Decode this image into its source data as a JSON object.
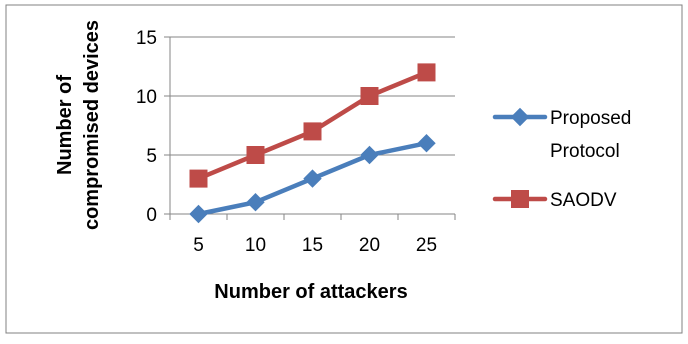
{
  "chart_data": {
    "type": "line",
    "title": "",
    "xlabel": "Number of attackers",
    "ylabel_lines": [
      "Number of",
      "compromised devices"
    ],
    "categories": [
      "5",
      "10",
      "15",
      "20",
      "25"
    ],
    "ylim": [
      0,
      15
    ],
    "yticks": [
      0,
      5,
      10,
      15
    ],
    "grid": "horizontal",
    "legend_position": "right",
    "series": [
      {
        "name_lines": [
          "Proposed",
          "Protocol"
        ],
        "values": [
          0,
          1,
          3,
          5,
          6
        ],
        "color": "#4a7ebb",
        "marker": "diamond"
      },
      {
        "name_lines": [
          "SAODV"
        ],
        "values": [
          3,
          5,
          7,
          10,
          12
        ],
        "color": "#be4b48",
        "marker": "square"
      }
    ]
  }
}
